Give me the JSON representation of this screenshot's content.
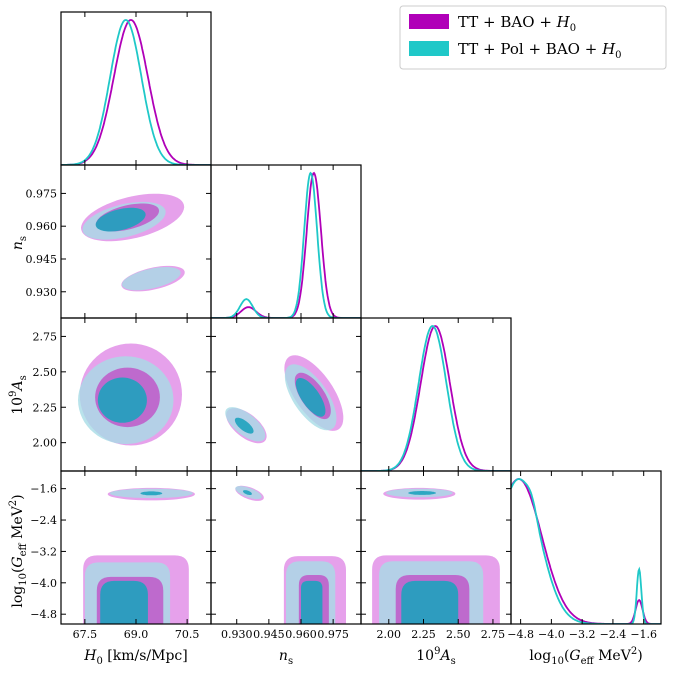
{
  "chart_data": {
    "type": "triangle",
    "colors": {
      "series1": "#b000b8",
      "series2": "#1fc8c8",
      "series1_fill": "#e08ae6",
      "series1_fill_inner": "#c058c8",
      "series2_fill": "#a8dce6",
      "series2_fill_inner": "#1ea2be"
    },
    "legend": {
      "position": "top-right",
      "entries": [
        {
          "label": "TT + BAO + H₀",
          "name": "TT + BAO + ",
          "sym": "H",
          "sub": "0"
        },
        {
          "label": "TT + Pol + BAO + H₀",
          "name": "TT + Pol + BAO + ",
          "sym": "H",
          "sub": "0"
        }
      ]
    },
    "parameters": [
      {
        "key": "H0",
        "label": "H₀ [km/s/Mpc]",
        "range": [
          66.8,
          71.2
        ],
        "ticks": [
          67.5,
          69.0,
          70.5
        ],
        "tick_labels": [
          "67.5",
          "69.0",
          "70.5"
        ]
      },
      {
        "key": "ns",
        "label": "n_s",
        "range": [
          0.918,
          0.988
        ],
        "ticks": [
          0.93,
          0.945,
          0.96,
          0.975
        ],
        "tick_labels": [
          "0.930",
          "0.945",
          "0.960",
          "0.975"
        ]
      },
      {
        "key": "As",
        "label": "10⁹ A_s",
        "range": [
          1.8,
          2.88
        ],
        "ticks": [
          2.0,
          2.25,
          2.5,
          2.75
        ],
        "tick_labels": [
          "2.00",
          "2.25",
          "2.50",
          "2.75"
        ]
      },
      {
        "key": "Geff",
        "label": "log₁₀(G_eff MeV²)",
        "range": [
          -5.05,
          -1.15
        ],
        "ticks": [
          -4.8,
          -4.0,
          -3.2,
          -2.4,
          -1.6
        ],
        "tick_labels": [
          "−4.8",
          "−4.0",
          "−3.2",
          "−2.4",
          "−1.6"
        ]
      }
    ],
    "axis_label_parts": {
      "H0": {
        "sym": "H",
        "sub": "0",
        "rest": " [km/s/Mpc]"
      },
      "ns": {
        "sym": "n",
        "sub": "s"
      },
      "As": {
        "pre": "10",
        "sup": "9",
        "sym": "A",
        "sub": "s"
      },
      "Geff": {
        "pre": "log",
        "presub": "10",
        "open": "(",
        "sym": "G",
        "sub": "eff",
        "unit": " MeV",
        "sup": "2",
        "close": ")"
      }
    },
    "marginals": {
      "H0": {
        "series1": {
          "peaks": [
            {
              "mu": 68.85,
              "sigma": 0.5,
              "amp": 1.0
            }
          ]
        },
        "series2": {
          "peaks": [
            {
              "mu": 68.7,
              "sigma": 0.46,
              "amp": 1.0
            }
          ]
        }
      },
      "ns": {
        "series1": {
          "peaks": [
            {
              "mu": 0.966,
              "sigma": 0.0033,
              "amp": 1.0
            },
            {
              "mu": 0.9355,
              "sigma": 0.0035,
              "amp": 0.075
            }
          ]
        },
        "series2": {
          "peaks": [
            {
              "mu": 0.9645,
              "sigma": 0.003,
              "amp": 1.0
            },
            {
              "mu": 0.9345,
              "sigma": 0.003,
              "amp": 0.13
            }
          ]
        }
      },
      "As": {
        "series1": {
          "peaks": [
            {
              "mu": 2.335,
              "sigma": 0.105,
              "amp": 1.0
            }
          ]
        },
        "series2": {
          "peaks": [
            {
              "mu": 2.315,
              "sigma": 0.1,
              "amp": 1.0
            }
          ]
        }
      },
      "Geff": {
        "series1": {
          "peaks": [
            {
              "mu": -4.85,
              "sigma": 0.6,
              "amp": 0.97
            },
            {
              "mu": -1.72,
              "sigma": 0.09,
              "amp": 0.16
            }
          ]
        },
        "series2": {
          "peaks": [
            {
              "mu": -4.85,
              "sigma": 0.55,
              "amp": 0.98
            },
            {
              "mu": -4.5,
              "sigma": 0.12,
              "amp": 0.06
            },
            {
              "mu": -1.72,
              "sigma": 0.06,
              "amp": 0.37
            }
          ]
        }
      }
    },
    "contours": {
      "ns|H0": [
        {
          "series": "s1",
          "level": "outer",
          "cx": 68.9,
          "cy": 0.964,
          "rx": 1.55,
          "ry": 0.0095,
          "angle": 0.24
        },
        {
          "series": "s2",
          "level": "outer",
          "cx": 68.65,
          "cy": 0.9625,
          "rx": 1.25,
          "ry": 0.0075,
          "angle": 0.24
        },
        {
          "series": "s1",
          "level": "inner",
          "cx": 68.75,
          "cy": 0.964,
          "rx": 0.95,
          "ry": 0.0055,
          "angle": 0.24
        },
        {
          "series": "s2",
          "level": "inner",
          "cx": 68.55,
          "cy": 0.963,
          "rx": 0.75,
          "ry": 0.0048,
          "angle": 0.24
        },
        {
          "series": "s1",
          "level": "outer",
          "cx": 69.5,
          "cy": 0.936,
          "rx": 0.95,
          "ry": 0.005,
          "angle": 0.22
        },
        {
          "series": "s2",
          "level": "outer",
          "cx": 69.45,
          "cy": 0.936,
          "rx": 0.88,
          "ry": 0.0045,
          "angle": 0.22
        }
      ],
      "As|H0": [
        {
          "series": "s1",
          "level": "outer",
          "cx": 68.85,
          "cy": 2.34,
          "rx": 1.5,
          "ry": 0.36,
          "angle": 0.0
        },
        {
          "series": "s2",
          "level": "outer",
          "cx": 68.7,
          "cy": 2.3,
          "rx": 1.4,
          "ry": 0.31,
          "angle": 0.0
        },
        {
          "series": "s1",
          "level": "inner",
          "cx": 68.75,
          "cy": 2.32,
          "rx": 0.95,
          "ry": 0.21,
          "angle": 0.0
        },
        {
          "series": "s2",
          "level": "inner",
          "cx": 68.6,
          "cy": 2.3,
          "rx": 0.72,
          "ry": 0.16,
          "angle": 0.0
        }
      ],
      "As|ns": [
        {
          "series": "s1",
          "level": "outer",
          "cx": 0.9345,
          "cy": 2.12,
          "rx": 0.0055,
          "ry": 0.17,
          "angle": 0.9
        },
        {
          "series": "s2",
          "level": "outer",
          "cx": 0.934,
          "cy": 2.13,
          "rx": 0.005,
          "ry": 0.17,
          "angle": 0.9
        },
        {
          "series": "s2",
          "level": "inner",
          "cx": 0.9335,
          "cy": 2.12,
          "rx": 0.0022,
          "ry": 0.08,
          "angle": 0.9
        },
        {
          "series": "s1",
          "level": "outer",
          "cx": 0.966,
          "cy": 2.35,
          "rx": 0.009,
          "ry": 0.31,
          "angle": 0.6
        },
        {
          "series": "s2",
          "level": "outer",
          "cx": 0.9645,
          "cy": 2.32,
          "rx": 0.008,
          "ry": 0.27,
          "angle": 0.6
        },
        {
          "series": "s1",
          "level": "inner",
          "cx": 0.9655,
          "cy": 2.33,
          "rx": 0.0055,
          "ry": 0.19,
          "angle": 0.6
        },
        {
          "series": "s2",
          "level": "inner",
          "cx": 0.9645,
          "cy": 2.32,
          "rx": 0.0042,
          "ry": 0.16,
          "angle": 0.6
        }
      ],
      "Geff|H0": [
        {
          "series": "s1",
          "level": "outer",
          "shape": "box",
          "x0": 67.45,
          "x1": 70.55,
          "y0": -5.05,
          "y1": -3.3
        },
        {
          "series": "s2",
          "level": "outer",
          "shape": "box",
          "x0": 67.5,
          "x1": 70.0,
          "y0": -5.05,
          "y1": -3.48
        },
        {
          "series": "s1",
          "level": "inner",
          "shape": "box",
          "x0": 67.85,
          "x1": 69.8,
          "y0": -5.05,
          "y1": -3.85
        },
        {
          "series": "s2",
          "level": "inner",
          "shape": "box",
          "x0": 67.95,
          "x1": 69.35,
          "y0": -5.05,
          "y1": -3.95
        },
        {
          "series": "s1",
          "level": "outer",
          "cx": 69.45,
          "cy": -1.74,
          "rx": 1.28,
          "ry": 0.16,
          "angle": 0.0
        },
        {
          "series": "s2",
          "level": "outer",
          "cx": 69.45,
          "cy": -1.72,
          "rx": 1.22,
          "ry": 0.12,
          "angle": 0.0
        },
        {
          "series": "s2",
          "level": "inner",
          "cx": 69.45,
          "cy": -1.72,
          "rx": 0.32,
          "ry": 0.05,
          "angle": 0.0
        }
      ],
      "Geff|ns": [
        {
          "series": "s1",
          "level": "outer",
          "shape": "box",
          "x0": 0.952,
          "x1": 0.981,
          "y0": -5.05,
          "y1": -3.32
        },
        {
          "series": "s2",
          "level": "outer",
          "shape": "box",
          "x0": 0.953,
          "x1": 0.976,
          "y0": -5.05,
          "y1": -3.45
        },
        {
          "series": "s1",
          "level": "inner",
          "shape": "box",
          "x0": 0.959,
          "x1": 0.973,
          "y0": -5.05,
          "y1": -3.8
        },
        {
          "series": "s2",
          "level": "inner",
          "shape": "box",
          "x0": 0.96,
          "x1": 0.97,
          "y0": -5.05,
          "y1": -3.95
        },
        {
          "series": "s1",
          "level": "outer",
          "cx": 0.936,
          "cy": -1.72,
          "rx": 0.007,
          "ry": 0.15,
          "angle": -0.35
        },
        {
          "series": "s2",
          "level": "outer",
          "cx": 0.9355,
          "cy": -1.7,
          "rx": 0.0065,
          "ry": 0.12,
          "angle": -0.35
        },
        {
          "series": "s2",
          "level": "inner",
          "cx": 0.935,
          "cy": -1.7,
          "rx": 0.0022,
          "ry": 0.05,
          "angle": -0.35
        }
      ],
      "Geff|As": [
        {
          "series": "s1",
          "level": "outer",
          "shape": "box",
          "x0": 1.88,
          "x1": 2.8,
          "y0": -5.05,
          "y1": -3.3
        },
        {
          "series": "s2",
          "level": "outer",
          "shape": "box",
          "x0": 1.93,
          "x1": 2.68,
          "y0": -5.05,
          "y1": -3.45
        },
        {
          "series": "s1",
          "level": "inner",
          "shape": "box",
          "x0": 2.05,
          "x1": 2.58,
          "y0": -5.05,
          "y1": -3.8
        },
        {
          "series": "s2",
          "level": "inner",
          "shape": "box",
          "x0": 2.09,
          "x1": 2.5,
          "y0": -5.05,
          "y1": -3.95
        },
        {
          "series": "s1",
          "level": "outer",
          "cx": 2.22,
          "cy": -1.73,
          "rx": 0.26,
          "ry": 0.15,
          "angle": 0.0
        },
        {
          "series": "s2",
          "level": "outer",
          "cx": 2.22,
          "cy": -1.71,
          "rx": 0.24,
          "ry": 0.11,
          "angle": 0.0
        },
        {
          "series": "s2",
          "level": "inner",
          "cx": 2.24,
          "cy": -1.71,
          "rx": 0.1,
          "ry": 0.05,
          "angle": 0.0
        }
      ]
    }
  }
}
